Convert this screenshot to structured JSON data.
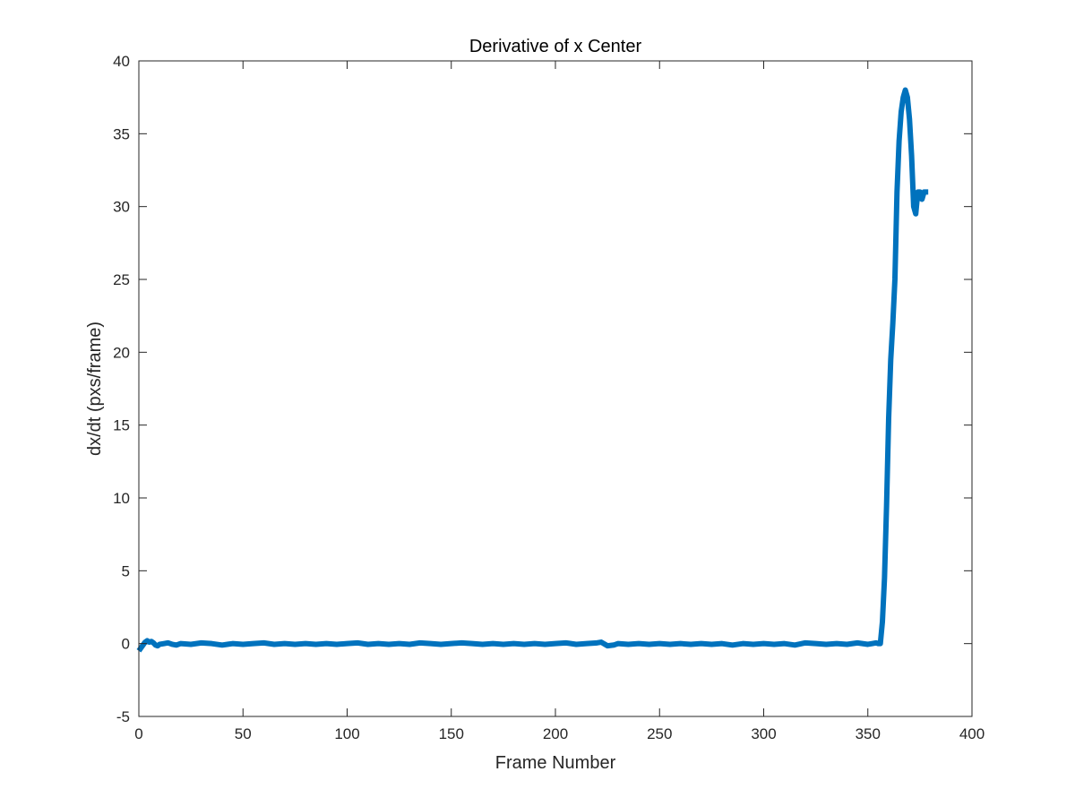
{
  "chart_data": {
    "type": "line",
    "title": "Derivative of x Center",
    "xlabel": "Frame Number",
    "ylabel": "dx/dt (pxs/frame)",
    "xlim": [
      0,
      400
    ],
    "ylim": [
      -5,
      40
    ],
    "xticks": [
      0,
      50,
      100,
      150,
      200,
      250,
      300,
      350,
      400
    ],
    "yticks": [
      -5,
      0,
      5,
      10,
      15,
      20,
      25,
      30,
      35,
      40
    ],
    "grid": false,
    "box": true,
    "series": [
      {
        "color": "#0072BD",
        "x": [
          0,
          1,
          2,
          3,
          4,
          5,
          6,
          7,
          8,
          9,
          10,
          12,
          14,
          16,
          18,
          20,
          25,
          30,
          35,
          40,
          45,
          50,
          55,
          60,
          65,
          70,
          75,
          80,
          85,
          90,
          95,
          100,
          105,
          110,
          115,
          120,
          125,
          130,
          135,
          140,
          145,
          150,
          155,
          160,
          165,
          170,
          175,
          180,
          185,
          190,
          195,
          200,
          205,
          210,
          215,
          220,
          222,
          225,
          228,
          230,
          235,
          240,
          245,
          250,
          255,
          260,
          265,
          270,
          275,
          280,
          285,
          290,
          295,
          300,
          305,
          310,
          315,
          320,
          325,
          330,
          335,
          340,
          345,
          350,
          352,
          354,
          355,
          356,
          357,
          358,
          359,
          360,
          361,
          362,
          363,
          364,
          365,
          366,
          367,
          368,
          369,
          370,
          371,
          372,
          373,
          374,
          375,
          376,
          377,
          378,
          379
        ],
        "y": [
          -0.5,
          -0.3,
          -0.1,
          0.1,
          0.2,
          0.1,
          0.15,
          0.05,
          -0.1,
          -0.15,
          -0.05,
          0.0,
          0.05,
          -0.05,
          -0.1,
          0.0,
          -0.05,
          0.05,
          0.0,
          -0.1,
          0.0,
          -0.05,
          0.0,
          0.05,
          -0.05,
          0.0,
          -0.05,
          0.0,
          -0.05,
          0.0,
          -0.05,
          0.0,
          0.05,
          -0.05,
          0.0,
          -0.05,
          0.0,
          -0.05,
          0.05,
          0.0,
          -0.05,
          0.0,
          0.05,
          0.0,
          -0.05,
          0.0,
          -0.05,
          0.0,
          -0.05,
          0.0,
          -0.05,
          0.0,
          0.05,
          -0.05,
          0.0,
          0.05,
          0.1,
          -0.15,
          -0.1,
          0.0,
          -0.05,
          0.0,
          -0.05,
          0.0,
          -0.05,
          0.0,
          -0.05,
          0.0,
          -0.05,
          0.0,
          -0.1,
          0.0,
          -0.05,
          0.0,
          -0.05,
          0.0,
          -0.1,
          0.05,
          0.0,
          -0.05,
          0.0,
          -0.05,
          0.05,
          -0.05,
          0.0,
          0.05,
          0.0,
          0.0,
          1.5,
          4.5,
          9.5,
          15.5,
          19.5,
          22.0,
          25.0,
          31.0,
          34.5,
          36.5,
          37.5,
          38.0,
          37.5,
          36.0,
          33.5,
          30.0,
          29.5,
          31.0,
          31.0,
          30.5,
          31.0,
          31.0,
          31.0
        ]
      }
    ]
  }
}
